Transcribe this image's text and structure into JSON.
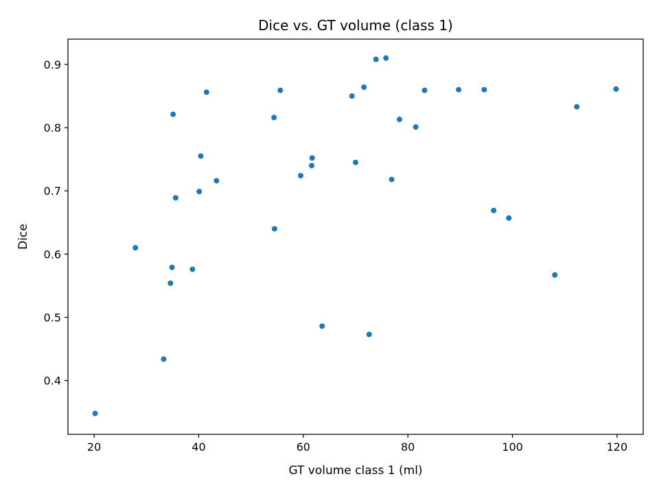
{
  "chart_data": {
    "type": "scatter",
    "title": "Dice vs. GT volume (class 1)",
    "xlabel": "GT volume class 1 (ml)",
    "ylabel": "Dice",
    "xlim": [
      15,
      125
    ],
    "ylim": [
      0.315,
      0.94
    ],
    "xticks": [
      20,
      40,
      60,
      80,
      100,
      120
    ],
    "yticks": [
      0.4,
      0.5,
      0.6,
      0.7,
      0.8,
      0.9
    ],
    "xtick_labels": [
      "20",
      "40",
      "60",
      "80",
      "100",
      "120"
    ],
    "ytick_labels": [
      "0.4",
      "0.5",
      "0.6",
      "0.7",
      "0.8",
      "0.9"
    ],
    "grid": false,
    "marker_color": "#1f77b4",
    "series": [
      {
        "points": [
          {
            "x": 20.2,
            "y": 0.348
          },
          {
            "x": 27.9,
            "y": 0.61
          },
          {
            "x": 33.3,
            "y": 0.434
          },
          {
            "x": 34.6,
            "y": 0.554
          },
          {
            "x": 34.9,
            "y": 0.579
          },
          {
            "x": 35.1,
            "y": 0.821
          },
          {
            "x": 35.6,
            "y": 0.689
          },
          {
            "x": 38.8,
            "y": 0.576
          },
          {
            "x": 40.1,
            "y": 0.699
          },
          {
            "x": 40.4,
            "y": 0.755
          },
          {
            "x": 41.5,
            "y": 0.856
          },
          {
            "x": 43.4,
            "y": 0.716
          },
          {
            "x": 54.4,
            "y": 0.816
          },
          {
            "x": 54.5,
            "y": 0.64
          },
          {
            "x": 55.6,
            "y": 0.859
          },
          {
            "x": 59.5,
            "y": 0.724
          },
          {
            "x": 61.6,
            "y": 0.74
          },
          {
            "x": 61.7,
            "y": 0.752
          },
          {
            "x": 63.6,
            "y": 0.486
          },
          {
            "x": 69.3,
            "y": 0.85
          },
          {
            "x": 70.0,
            "y": 0.745
          },
          {
            "x": 71.6,
            "y": 0.864
          },
          {
            "x": 72.6,
            "y": 0.473
          },
          {
            "x": 73.9,
            "y": 0.908
          },
          {
            "x": 75.8,
            "y": 0.91
          },
          {
            "x": 76.9,
            "y": 0.718
          },
          {
            "x": 78.4,
            "y": 0.813
          },
          {
            "x": 81.5,
            "y": 0.801
          },
          {
            "x": 83.2,
            "y": 0.859
          },
          {
            "x": 89.7,
            "y": 0.86
          },
          {
            "x": 94.6,
            "y": 0.86
          },
          {
            "x": 96.4,
            "y": 0.669
          },
          {
            "x": 99.3,
            "y": 0.657
          },
          {
            "x": 108.1,
            "y": 0.567
          },
          {
            "x": 112.3,
            "y": 0.833
          },
          {
            "x": 119.8,
            "y": 0.861
          }
        ]
      }
    ]
  }
}
